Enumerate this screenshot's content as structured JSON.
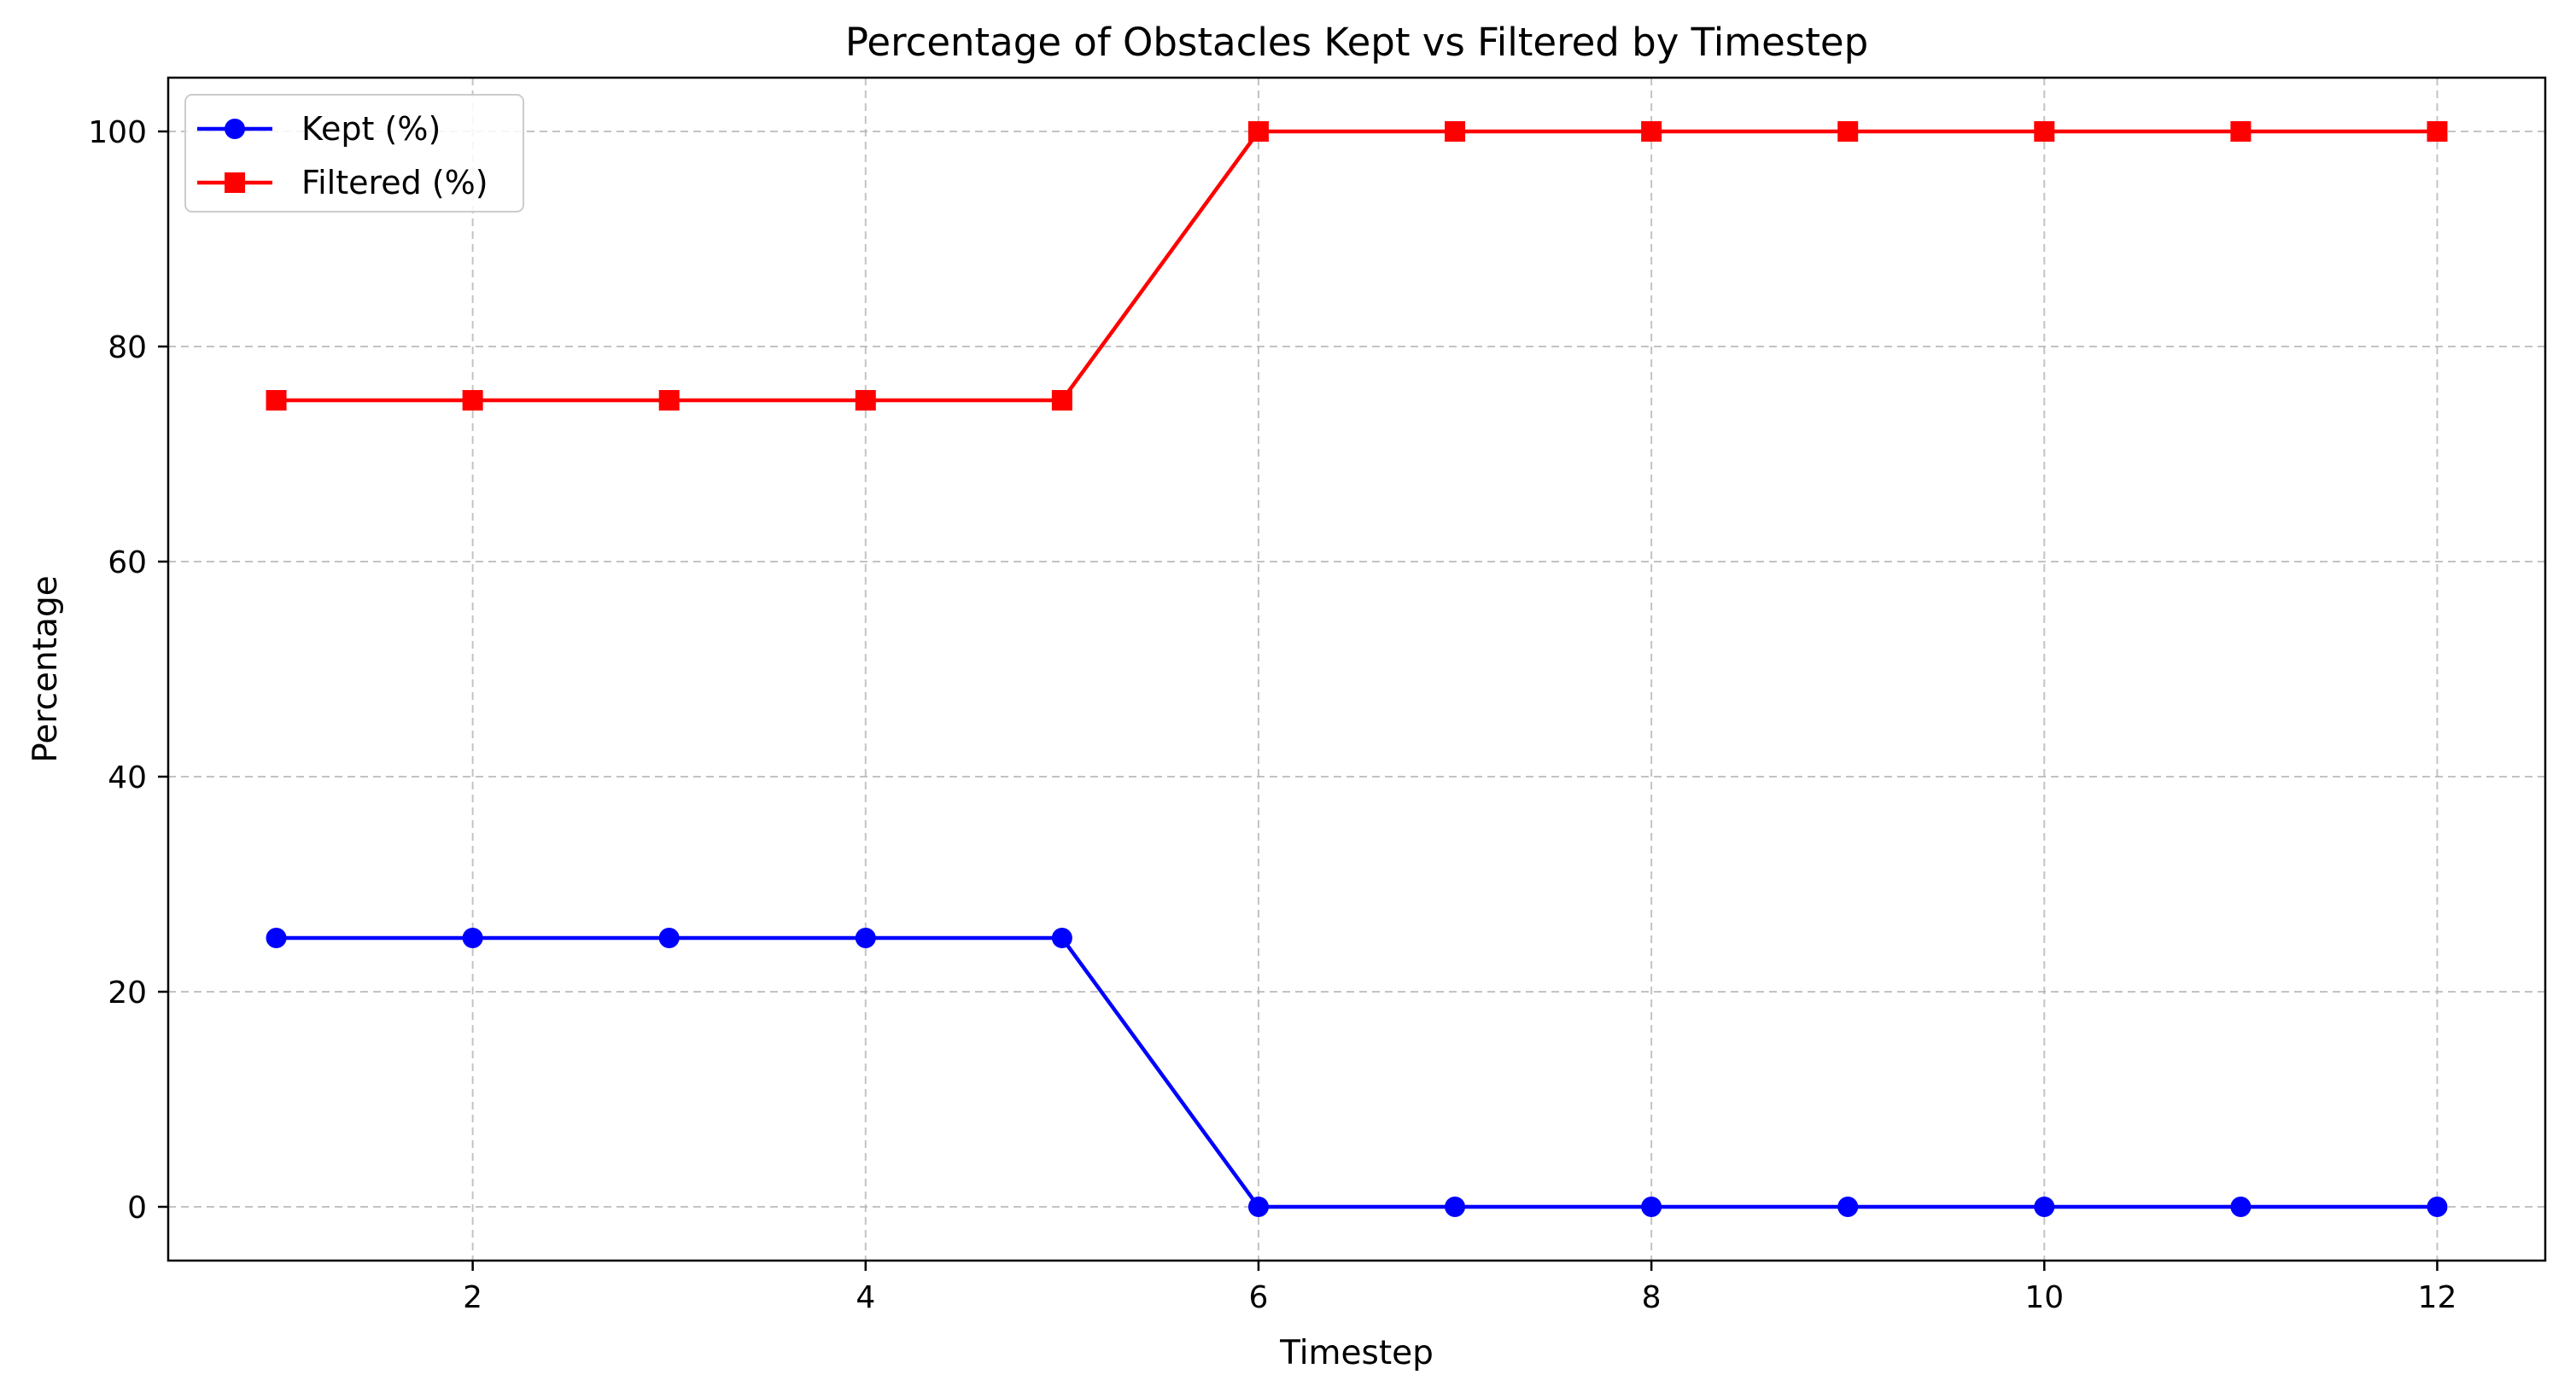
{
  "chart_data": {
    "type": "line",
    "title": "Percentage of Obstacles Kept vs Filtered by Timestep",
    "xlabel": "Timestep",
    "ylabel": "Percentage",
    "x": [
      1,
      2,
      3,
      4,
      5,
      6,
      7,
      8,
      9,
      10,
      11,
      12
    ],
    "xlim": [
      0.45,
      12.55
    ],
    "ylim": [
      -5,
      105
    ],
    "xticks": [
      2,
      4,
      6,
      8,
      10,
      12
    ],
    "yticks": [
      0,
      20,
      40,
      60,
      80,
      100
    ],
    "grid": true,
    "grid_style": "dashed",
    "legend_position": "top-left",
    "series": [
      {
        "name": "Kept (%)",
        "color": "#0000ff",
        "marker": "circle",
        "values": [
          25,
          25,
          25,
          25,
          25,
          0,
          0,
          0,
          0,
          0,
          0,
          0
        ]
      },
      {
        "name": "Filtered (%)",
        "color": "#ff0000",
        "marker": "square",
        "values": [
          75,
          75,
          75,
          75,
          75,
          100,
          100,
          100,
          100,
          100,
          100,
          100
        ]
      }
    ]
  }
}
